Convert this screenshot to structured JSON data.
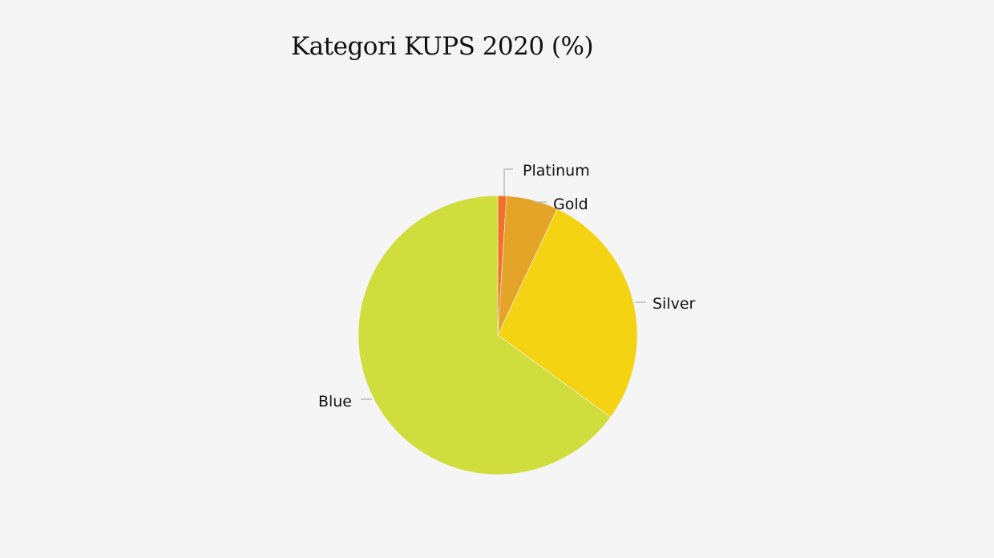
{
  "chart_data": {
    "type": "pie",
    "title": "Kategori KUPS 2020 (%)",
    "categories": [
      "Platinum",
      "Gold",
      "Silver",
      "Blue"
    ],
    "values": [
      1,
      6,
      28,
      65
    ],
    "colors": [
      "#f2712a",
      "#e3a428",
      "#f4d313",
      "#cfdd3d"
    ],
    "start_angle": "top",
    "direction": "clockwise",
    "legend": "none (outside labels with leader lines)"
  }
}
